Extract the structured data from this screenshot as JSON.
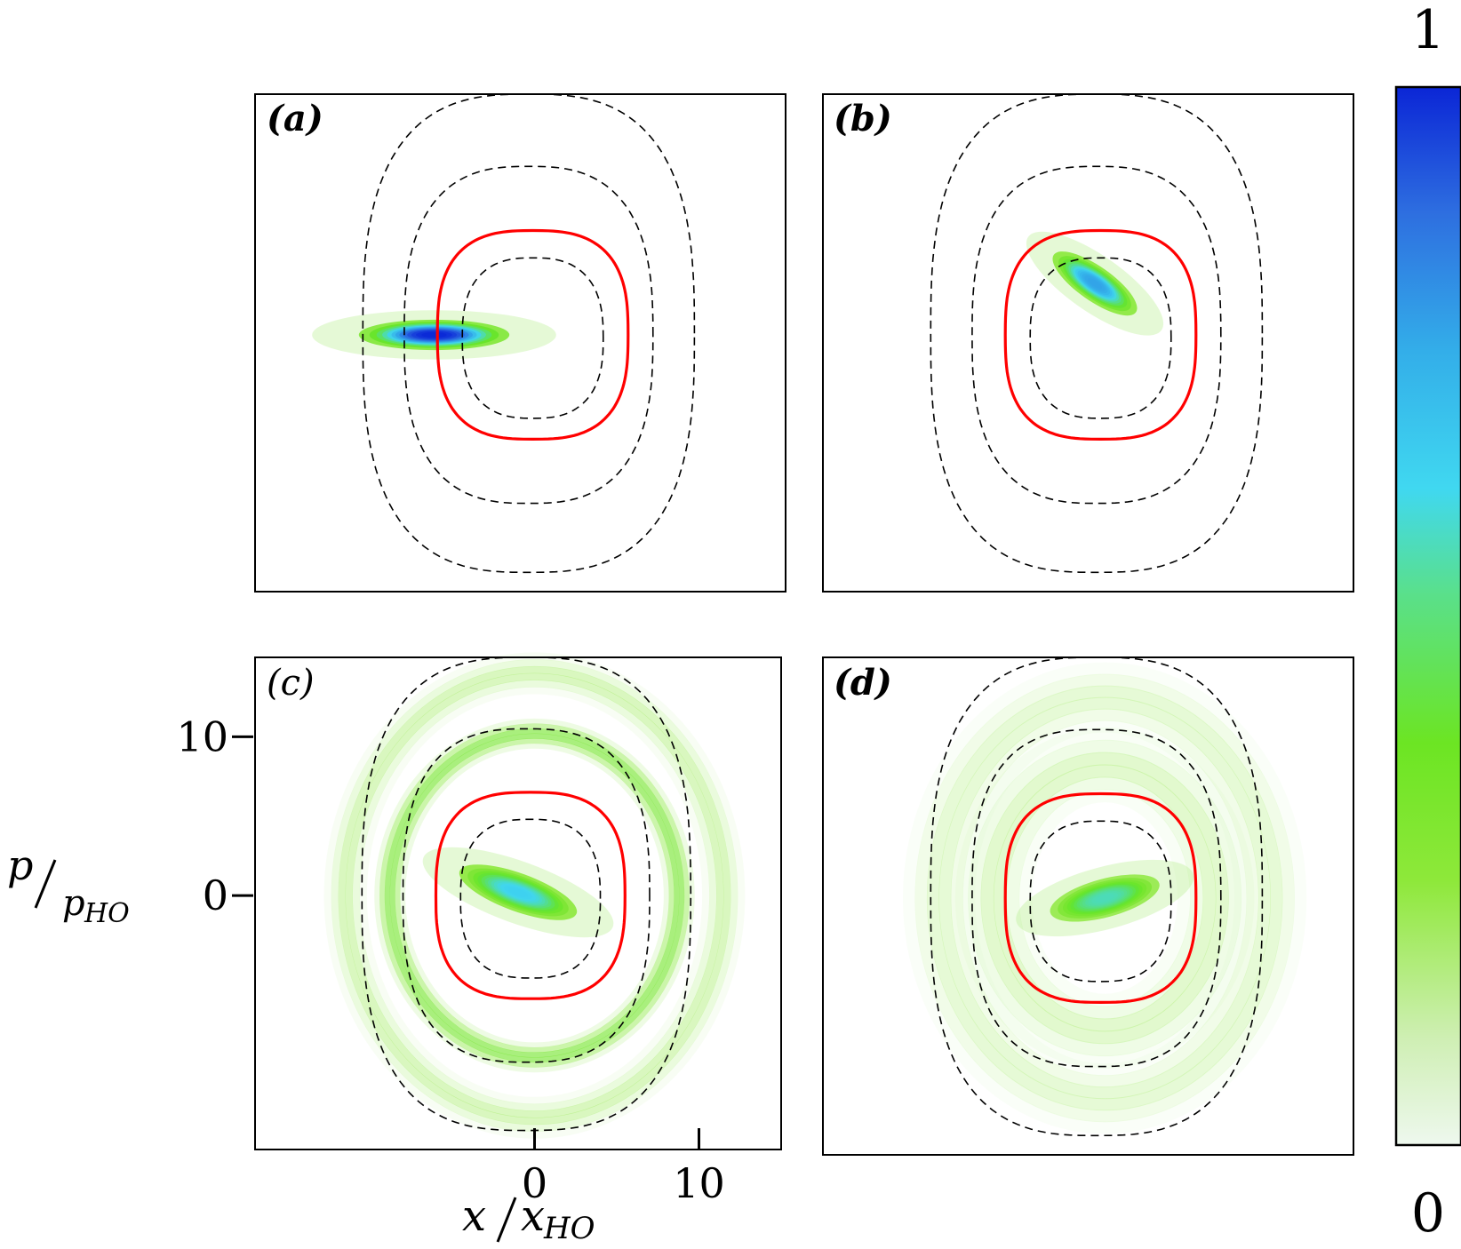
{
  "chart_data": [
    {
      "type": "heatmap",
      "panel": "(a)",
      "colormap": [
        "#ffffff",
        "#dff5df",
        "#7ee51f",
        "#4fe07a",
        "#3ed7f5",
        "#2f8be6",
        "#0a2bd9"
      ],
      "x_range": [
        -17,
        15
      ],
      "p_range": [
        -16,
        15
      ],
      "red_contour": {
        "x_range": [
          -6.0,
          5.5
        ],
        "p_range": [
          -6.5,
          6.5
        ]
      },
      "dashed_contours": [
        {
          "x_range": [
            -4.5,
            4.0
          ],
          "p_range": [
            -5.2,
            4.8
          ]
        },
        {
          "x_range": [
            -8.0,
            7.0
          ],
          "p_range": [
            -10.5,
            10.5
          ]
        },
        {
          "x_range": [
            -10.5,
            9.5
          ],
          "p_range": [
            -14.8,
            15.0
          ]
        }
      ],
      "blobs": [
        {
          "x": -6.2,
          "p": 0.0,
          "sx": 3.6,
          "sp": 0.75,
          "angle": 0,
          "amp": 1.0
        }
      ],
      "rings": []
    },
    {
      "type": "heatmap",
      "panel": "(b)",
      "x_range": [
        -17,
        15
      ],
      "p_range": [
        -16,
        15
      ],
      "blobs": [
        {
          "x": -0.6,
          "p": 3.2,
          "sx": 2.4,
          "sp": 0.85,
          "angle": -35,
          "amp": 0.75
        }
      ],
      "rings": []
    },
    {
      "type": "heatmap",
      "panel": "(c)",
      "x_range": [
        -17,
        15
      ],
      "p_range": [
        -16,
        15
      ],
      "x_ticks": [
        0,
        10
      ],
      "p_ticks": [
        0,
        10
      ],
      "xlabel": "x/x_HO",
      "ylabel": "p/p_HO",
      "blobs": [
        {
          "x": -1.0,
          "p": 0.2,
          "sx": 3.0,
          "sp": 0.95,
          "angle": -20,
          "amp": 0.6
        }
      ],
      "rings": [
        {
          "rx": 8.8,
          "rp": 10.2,
          "width": 1.3,
          "amp": 0.22
        },
        {
          "rx": 11.5,
          "rp": 14.0,
          "width": 1.8,
          "amp": 0.12
        }
      ]
    },
    {
      "type": "heatmap",
      "panel": "(d)",
      "x_range": [
        -17,
        15
      ],
      "p_range": [
        -16,
        15
      ],
      "blobs": [
        {
          "x": 0.0,
          "p": 0.0,
          "sx": 2.7,
          "sp": 0.95,
          "angle": 15,
          "amp": 0.5
        }
      ],
      "rings": [
        {
          "rx": 6.7,
          "rp": 8.3,
          "width": 3.2,
          "amp": 0.1
        },
        {
          "rx": 10.0,
          "rp": 12.5,
          "width": 3.0,
          "amp": 0.09
        }
      ]
    }
  ],
  "colorbar": {
    "min_label": "0",
    "max_label": "1",
    "range": [
      0,
      1
    ]
  }
}
